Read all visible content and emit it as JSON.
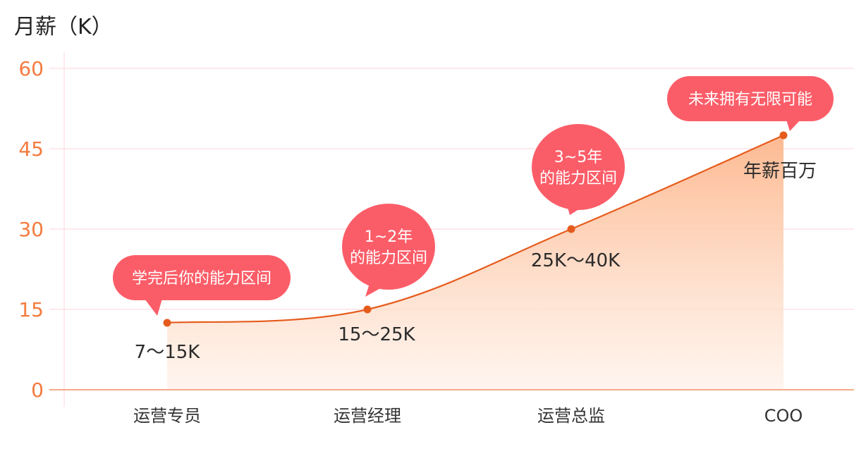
{
  "chart_data": {
    "type": "area",
    "ylabel": "月薪（K）",
    "ylim": [
      0,
      60
    ],
    "yticks": [
      0,
      15,
      30,
      45,
      60
    ],
    "grid": true,
    "categories": [
      "运营专员",
      "运营经理",
      "运营总监",
      "COO"
    ],
    "values": [
      12.5,
      15,
      30,
      47.5
    ],
    "data_labels": [
      "7～15K",
      "15～25K",
      "25K～40K",
      "年薪百万"
    ],
    "annotations": [
      [
        "学完后你的能力区间"
      ],
      [
        "1~2年",
        "的能力区间"
      ],
      [
        "3~5年",
        "的能力区间"
      ],
      [
        "未来拥有无限可能"
      ]
    ]
  },
  "colors": {
    "line": "#e65b1c",
    "area_top": "#fdb68c",
    "area_bottom": "#fff1e8",
    "bubble": "#fb5d68",
    "grid": "#fde2e5",
    "axis": "#f5a98a",
    "ytick": "#f47b3f"
  }
}
